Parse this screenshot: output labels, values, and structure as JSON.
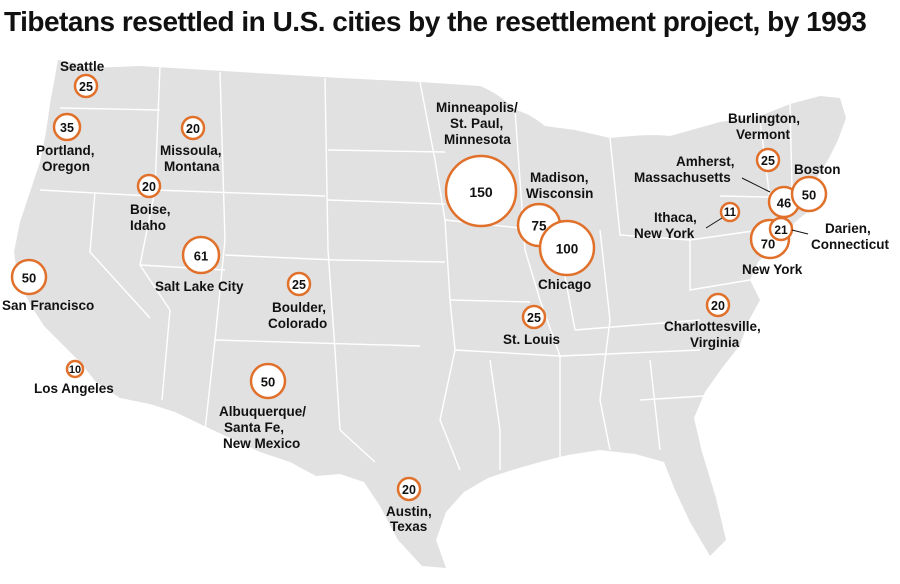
{
  "title": "Tibetans resettled in U.S. cities by the resettlement project, by 1993",
  "colors": {
    "land": "#e1e1e1",
    "bubble_stroke": "#e0702a",
    "text": "#111111"
  },
  "cities": [
    {
      "id": "seattle",
      "count": "25",
      "label": [
        "Seattle"
      ]
    },
    {
      "id": "portland",
      "count": "35",
      "label": [
        "Portland,",
        "Oregon"
      ]
    },
    {
      "id": "missoula",
      "count": "20",
      "label": [
        "Missoula,",
        "Montana"
      ]
    },
    {
      "id": "boise",
      "count": "20",
      "label": [
        "Boise,",
        "Idaho"
      ]
    },
    {
      "id": "salt-lake-city",
      "count": "61",
      "label": [
        "Salt Lake City"
      ]
    },
    {
      "id": "san-francisco",
      "count": "50",
      "label": [
        "San Francisco"
      ]
    },
    {
      "id": "boulder",
      "count": "25",
      "label": [
        "Boulder,",
        "Colorado"
      ]
    },
    {
      "id": "los-angeles",
      "count": "10",
      "label": [
        "Los Angeles"
      ]
    },
    {
      "id": "albuquerque",
      "count": "50",
      "label": [
        "Albuquerque/",
        "Santa Fe,",
        "New Mexico"
      ]
    },
    {
      "id": "austin",
      "count": "20",
      "label": [
        "Austin,",
        "Texas"
      ]
    },
    {
      "id": "minneapolis",
      "count": "150",
      "label": [
        "Minneapolis/",
        "St. Paul,",
        "Minnesota"
      ]
    },
    {
      "id": "madison",
      "count": "75",
      "label": [
        "Madison,",
        "Wisconsin"
      ]
    },
    {
      "id": "chicago",
      "count": "100",
      "label": [
        "Chicago"
      ]
    },
    {
      "id": "st-louis",
      "count": "25",
      "label": [
        "St. Louis"
      ]
    },
    {
      "id": "ithaca",
      "count": "11",
      "label": [
        "Ithaca,",
        "New York"
      ]
    },
    {
      "id": "burlington",
      "count": "25",
      "label": [
        "Burlington,",
        "Vermont"
      ]
    },
    {
      "id": "amherst",
      "count": "46",
      "label": [
        "Amherst,",
        "Massachusetts"
      ]
    },
    {
      "id": "boston",
      "count": "50",
      "label": [
        "Boston"
      ]
    },
    {
      "id": "darien",
      "count": "21",
      "label": [
        "Darien,",
        "Connecticut"
      ]
    },
    {
      "id": "new-york",
      "count": "70",
      "label": [
        "New York"
      ]
    },
    {
      "id": "charlottesville",
      "count": "20",
      "label": [
        "Charlottesville,",
        "Virginia"
      ]
    }
  ]
}
